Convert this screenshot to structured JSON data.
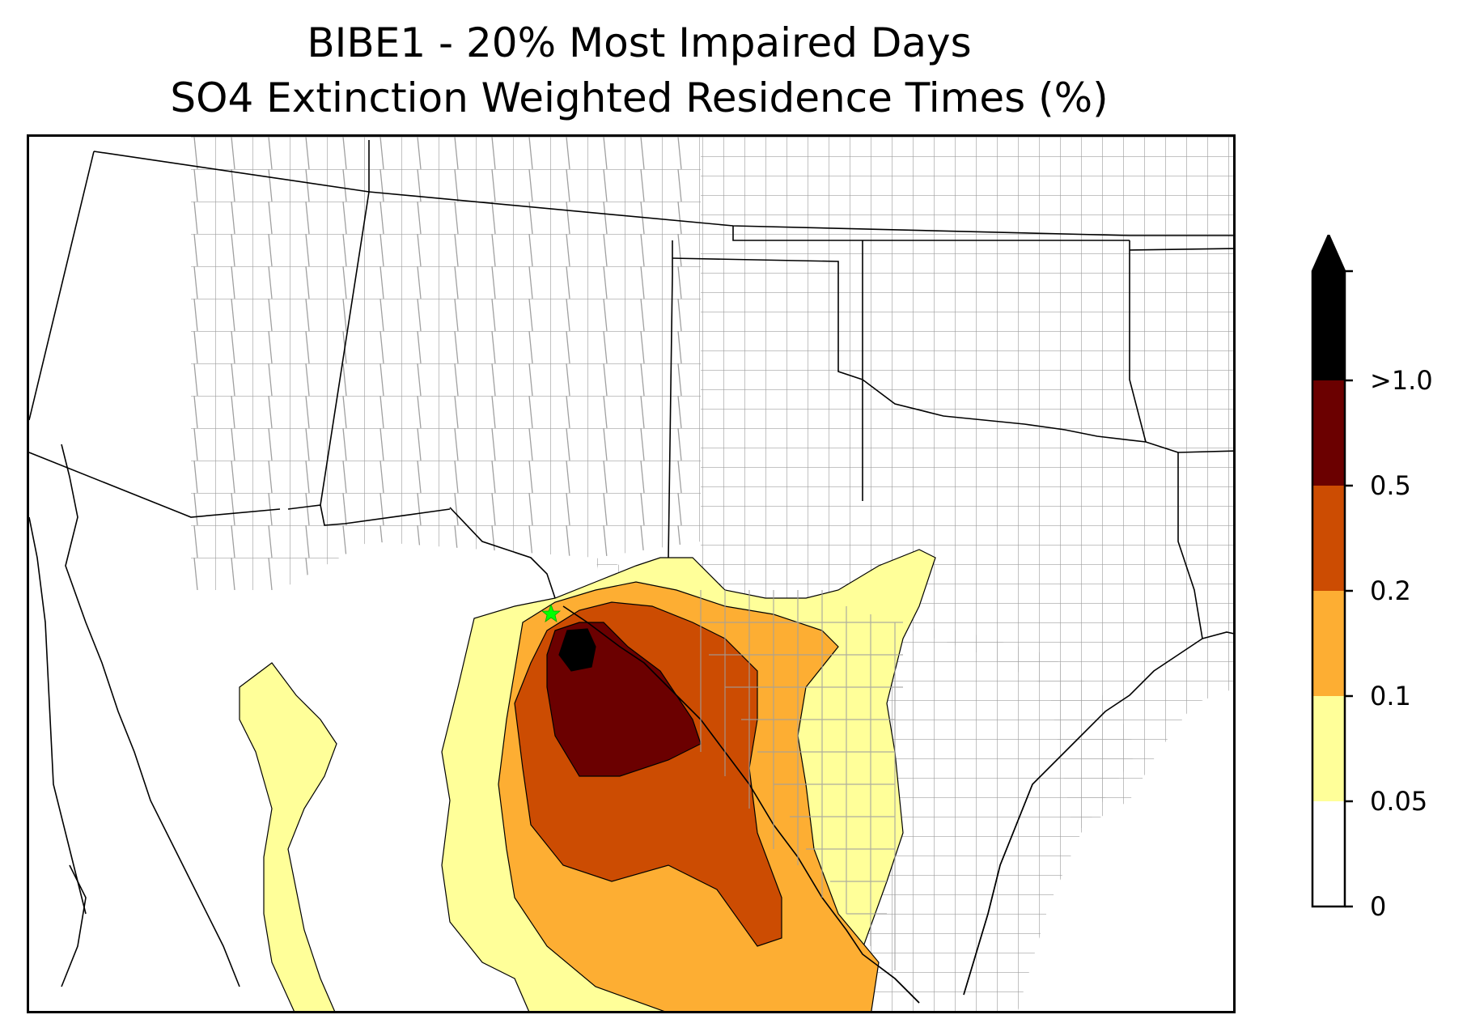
{
  "title": {
    "line1": "BIBE1 - 20% Most Impaired Days",
    "line2": "SO4 Extinction Weighted Residence Times (%)"
  },
  "site_marker": {
    "color": "#00ff00",
    "shape": "star"
  },
  "colors": {
    "background": "#ffffff",
    "state_border": "#000000",
    "county_border": "#a0a0a0",
    "level_0_05": "#ffff99",
    "level_0_1": "#fdae33",
    "level_0_2": "#cc4c02",
    "level_0_5": "#6b0000",
    "level_over_1": "#000000"
  },
  "colorbar": {
    "ticks": [
      "0",
      "0.05",
      "0.1",
      "0.2",
      "0.5",
      ">1.0"
    ],
    "bins": [
      {
        "from": "0",
        "to": "0.05",
        "color": "#ffffff"
      },
      {
        "from": "0.05",
        "to": "0.1",
        "color": "#ffff99"
      },
      {
        "from": "0.1",
        "to": "0.2",
        "color": "#fdae33"
      },
      {
        "from": "0.2",
        "to": "0.5",
        "color": "#cc4c02"
      },
      {
        "from": "0.5",
        "to": "1.0",
        "color": "#6b0000"
      },
      {
        "from": ">1.0",
        "to": null,
        "color": "#000000"
      }
    ],
    "extend": "max"
  }
}
